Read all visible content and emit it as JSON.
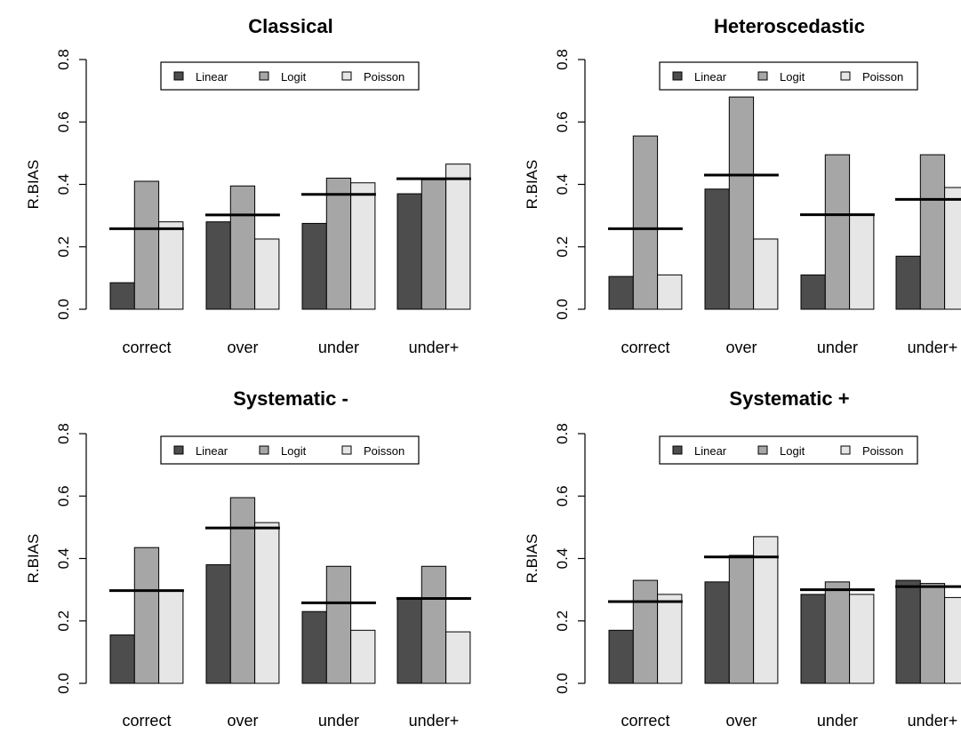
{
  "colors": {
    "Linear": "#4d4d4d",
    "Logit": "#a6a6a6",
    "Poisson": "#e6e6e6",
    "mean_line": "#000000"
  },
  "chart_data": [
    {
      "type": "bar",
      "title": "Classical",
      "ylabel": "R.BIAS",
      "xlabel": "",
      "ylim": [
        0,
        0.8
      ],
      "yticks": [
        "0.0",
        "0.2",
        "0.4",
        "0.6",
        "0.8"
      ],
      "categories": [
        "correct",
        "over",
        "under",
        "under+"
      ],
      "series": [
        {
          "name": "Linear",
          "values": [
            0.085,
            0.28,
            0.275,
            0.37
          ]
        },
        {
          "name": "Logit",
          "values": [
            0.41,
            0.395,
            0.42,
            0.415
          ]
        },
        {
          "name": "Poisson",
          "values": [
            0.28,
            0.225,
            0.405,
            0.465
          ]
        }
      ],
      "mean_lines": [
        0.258,
        0.302,
        0.368,
        0.418
      ],
      "legend": "top-right"
    },
    {
      "type": "bar",
      "title": "Heteroscedastic",
      "ylabel": "R.BIAS",
      "xlabel": "",
      "ylim": [
        0,
        0.8
      ],
      "yticks": [
        "0.0",
        "0.2",
        "0.4",
        "0.6",
        "0.8"
      ],
      "categories": [
        "correct",
        "over",
        "under",
        "under+"
      ],
      "series": [
        {
          "name": "Linear",
          "values": [
            0.105,
            0.385,
            0.11,
            0.17
          ]
        },
        {
          "name": "Logit",
          "values": [
            0.555,
            0.68,
            0.495,
            0.495
          ]
        },
        {
          "name": "Poisson",
          "values": [
            0.11,
            0.225,
            0.305,
            0.39
          ]
        }
      ],
      "mean_lines": [
        0.258,
        0.43,
        0.303,
        0.352
      ],
      "legend": "top-right"
    },
    {
      "type": "bar",
      "title": "Systematic -",
      "ylabel": "R.BIAS",
      "xlabel": "",
      "ylim": [
        0,
        0.8
      ],
      "yticks": [
        "0.0",
        "0.2",
        "0.4",
        "0.6",
        "0.8"
      ],
      "categories": [
        "correct",
        "over",
        "under",
        "under+"
      ],
      "series": [
        {
          "name": "Linear",
          "values": [
            0.155,
            0.38,
            0.23,
            0.275
          ]
        },
        {
          "name": "Logit",
          "values": [
            0.435,
            0.595,
            0.375,
            0.375
          ]
        },
        {
          "name": "Poisson",
          "values": [
            0.295,
            0.515,
            0.17,
            0.165
          ]
        }
      ],
      "mean_lines": [
        0.297,
        0.498,
        0.258,
        0.272
      ],
      "legend": "top-right"
    },
    {
      "type": "bar",
      "title": "Systematic +",
      "ylabel": "R.BIAS",
      "xlabel": "",
      "ylim": [
        0,
        0.8
      ],
      "yticks": [
        "0.0",
        "0.2",
        "0.4",
        "0.6",
        "0.8"
      ],
      "categories": [
        "correct",
        "over",
        "under",
        "under+"
      ],
      "series": [
        {
          "name": "Linear",
          "values": [
            0.17,
            0.325,
            0.285,
            0.33
          ]
        },
        {
          "name": "Logit",
          "values": [
            0.33,
            0.41,
            0.325,
            0.32
          ]
        },
        {
          "name": "Poisson",
          "values": [
            0.285,
            0.47,
            0.285,
            0.275
          ]
        }
      ],
      "mean_lines": [
        0.262,
        0.405,
        0.3,
        0.31
      ],
      "legend": "top-right"
    }
  ]
}
